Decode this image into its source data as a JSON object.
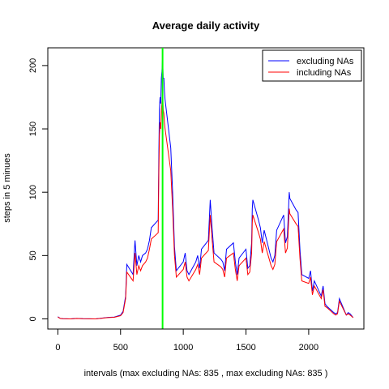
{
  "chart_data": {
    "type": "line",
    "title": "Average daily activity",
    "xlabel": "intervals (max excluding NAs: 835 , max excluding NAs: 835 )",
    "ylabel": "steps in 5 minues",
    "xlim": [
      -80,
      2440
    ],
    "ylim": [
      -8,
      214
    ],
    "xticks": [
      0,
      500,
      1000,
      1500,
      2000
    ],
    "yticks": [
      0,
      50,
      100,
      150,
      200
    ],
    "grid": false,
    "legend_position": "top-right",
    "vline": {
      "x": 835,
      "color": "#00ff00"
    },
    "series": [
      {
        "name": "excluding NAs",
        "color": "#0000ff",
        "x": [
          0,
          20,
          40,
          100,
          150,
          200,
          300,
          400,
          450,
          500,
          520,
          540,
          550,
          600,
          615,
          630,
          645,
          660,
          675,
          700,
          715,
          730,
          745,
          800,
          805,
          810,
          815,
          820,
          825,
          830,
          835,
          840,
          845,
          850,
          855,
          900,
          915,
          930,
          945,
          1000,
          1015,
          1030,
          1045,
          1100,
          1115,
          1130,
          1145,
          1200,
          1215,
          1230,
          1245,
          1300,
          1315,
          1330,
          1345,
          1400,
          1415,
          1430,
          1445,
          1500,
          1515,
          1530,
          1545,
          1550,
          1555,
          1600,
          1615,
          1630,
          1645,
          1700,
          1715,
          1730,
          1745,
          1800,
          1815,
          1830,
          1845,
          1850,
          1900,
          1915,
          1930,
          1945,
          2000,
          2015,
          2030,
          2045,
          2100,
          2115,
          2130,
          2145,
          2200,
          2215,
          2230,
          2245,
          2300,
          2315,
          2330,
          2355
        ],
        "values": [
          1.7,
          0.3,
          0.1,
          0,
          0.4,
          0.1,
          0,
          1.2,
          1.5,
          3,
          6,
          18,
          43,
          35,
          62,
          42,
          50,
          45,
          50,
          52,
          55,
          62,
          72,
          78,
          130,
          165,
          175,
          170,
          190,
          195,
          206,
          190,
          190,
          180,
          173,
          135,
          100,
          57,
          38,
          45,
          52,
          38,
          35,
          45,
          50,
          40,
          55,
          62,
          94,
          72,
          52,
          47,
          45,
          38,
          55,
          60,
          45,
          35,
          48,
          55,
          40,
          42,
          60,
          87,
          94,
          78,
          72,
          60,
          70,
          48,
          45,
          50,
          70,
          82,
          60,
          65,
          100,
          95,
          86,
          84,
          55,
          35,
          32,
          38,
          22,
          30,
          18,
          26,
          12,
          10,
          5,
          4,
          5,
          16,
          3,
          5,
          4,
          1
        ]
      },
      {
        "name": "including NAs",
        "color": "#ff0000",
        "x": [
          0,
          20,
          40,
          100,
          150,
          200,
          300,
          400,
          450,
          500,
          520,
          540,
          550,
          600,
          615,
          630,
          645,
          660,
          675,
          700,
          715,
          730,
          745,
          800,
          805,
          810,
          815,
          820,
          825,
          830,
          835,
          840,
          845,
          850,
          855,
          900,
          915,
          930,
          945,
          1000,
          1015,
          1030,
          1045,
          1100,
          1115,
          1130,
          1145,
          1200,
          1215,
          1230,
          1245,
          1300,
          1315,
          1330,
          1345,
          1400,
          1415,
          1430,
          1445,
          1500,
          1515,
          1530,
          1545,
          1550,
          1555,
          1600,
          1615,
          1630,
          1645,
          1700,
          1715,
          1730,
          1745,
          1800,
          1815,
          1830,
          1845,
          1850,
          1900,
          1915,
          1930,
          1945,
          2000,
          2015,
          2030,
          2045,
          2100,
          2115,
          2130,
          2145,
          2200,
          2215,
          2230,
          2245,
          2300,
          2315,
          2330,
          2355
        ],
        "values": [
          1.5,
          0.3,
          0.1,
          0,
          0.3,
          0.1,
          0,
          1,
          1.3,
          2.5,
          5,
          16,
          37,
          30,
          52,
          35,
          42,
          38,
          42,
          45,
          48,
          55,
          63,
          68,
          115,
          145,
          155,
          150,
          165,
          170,
          179,
          165,
          162,
          155,
          150,
          117,
          87,
          50,
          33,
          39,
          45,
          33,
          30,
          39,
          43,
          35,
          48,
          54,
          82,
          63,
          45,
          41,
          39,
          33,
          48,
          52,
          39,
          30,
          42,
          48,
          35,
          37,
          52,
          76,
          82,
          68,
          63,
          52,
          61,
          42,
          39,
          43,
          61,
          71,
          52,
          56,
          87,
          83,
          75,
          73,
          48,
          30,
          28,
          33,
          19,
          26,
          16,
          23,
          10,
          9,
          4,
          3,
          4,
          14,
          3,
          4,
          3,
          1
        ]
      }
    ]
  }
}
